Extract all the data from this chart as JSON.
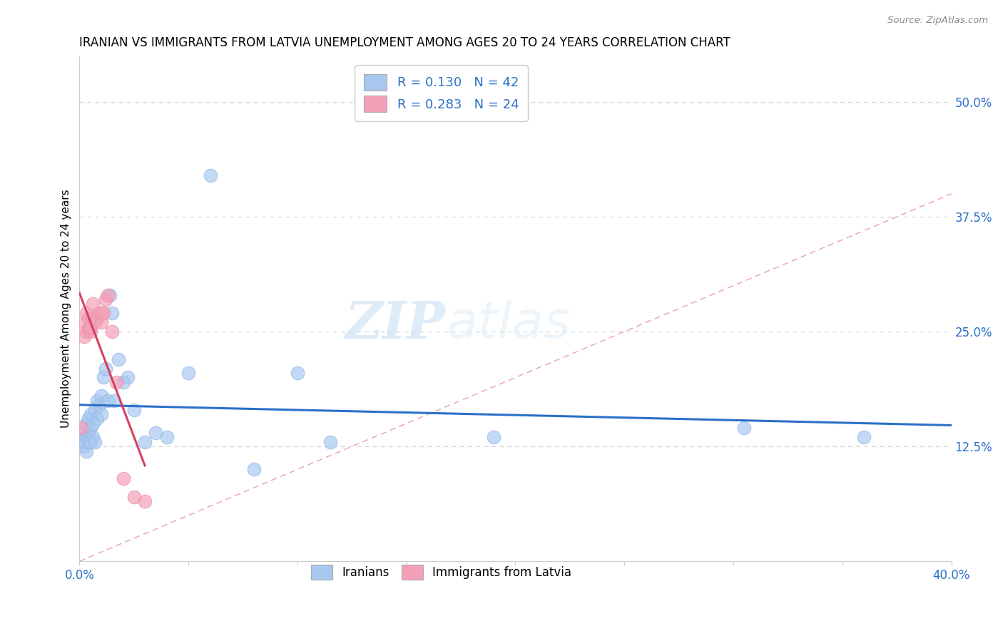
{
  "title": "IRANIAN VS IMMIGRANTS FROM LATVIA UNEMPLOYMENT AMONG AGES 20 TO 24 YEARS CORRELATION CHART",
  "source": "Source: ZipAtlas.com",
  "ylabel": "Unemployment Among Ages 20 to 24 years",
  "xlim": [
    0,
    0.4
  ],
  "ylim": [
    0,
    0.55
  ],
  "yticks_right": [
    0.125,
    0.25,
    0.375,
    0.5
  ],
  "ytick_right_labels": [
    "12.5%",
    "25.0%",
    "37.5%",
    "50.0%"
  ],
  "iranian_color": "#a8c8f0",
  "latvian_color": "#f4a0b8",
  "iranian_line_color": "#2a70c8",
  "latvian_line_color": "#d84060",
  "diagonal_color": "#e8a0b0",
  "watermark_zip": "ZIP",
  "watermark_atlas": "atlas",
  "iranians_x": [
    0.001,
    0.002,
    0.002,
    0.003,
    0.003,
    0.003,
    0.004,
    0.004,
    0.004,
    0.005,
    0.005,
    0.005,
    0.006,
    0.006,
    0.007,
    0.007,
    0.008,
    0.008,
    0.009,
    0.01,
    0.01,
    0.011,
    0.012,
    0.013,
    0.014,
    0.015,
    0.016,
    0.018,
    0.02,
    0.022,
    0.025,
    0.03,
    0.035,
    0.04,
    0.05,
    0.06,
    0.08,
    0.1,
    0.115,
    0.19,
    0.305,
    0.36
  ],
  "iranians_y": [
    0.13,
    0.14,
    0.125,
    0.135,
    0.15,
    0.12,
    0.14,
    0.13,
    0.155,
    0.13,
    0.145,
    0.16,
    0.135,
    0.15,
    0.165,
    0.13,
    0.155,
    0.175,
    0.17,
    0.18,
    0.16,
    0.2,
    0.21,
    0.175,
    0.29,
    0.27,
    0.175,
    0.22,
    0.195,
    0.2,
    0.165,
    0.13,
    0.14,
    0.135,
    0.205,
    0.42,
    0.1,
    0.205,
    0.13,
    0.135,
    0.145,
    0.135
  ],
  "latvians_x": [
    0.001,
    0.002,
    0.002,
    0.003,
    0.003,
    0.004,
    0.004,
    0.005,
    0.005,
    0.006,
    0.006,
    0.007,
    0.008,
    0.009,
    0.01,
    0.01,
    0.011,
    0.012,
    0.013,
    0.015,
    0.017,
    0.02,
    0.025,
    0.03
  ],
  "latvians_y": [
    0.145,
    0.26,
    0.245,
    0.25,
    0.27,
    0.255,
    0.265,
    0.25,
    0.255,
    0.265,
    0.28,
    0.26,
    0.265,
    0.27,
    0.26,
    0.27,
    0.27,
    0.285,
    0.29,
    0.25,
    0.195,
    0.09,
    0.07,
    0.065
  ],
  "legend1_label": "R = 0.130   N = 42",
  "legend2_label": "R = 0.283   N = 24",
  "bottom_legend1": "Iranians",
  "bottom_legend2": "Immigrants from Latvia"
}
